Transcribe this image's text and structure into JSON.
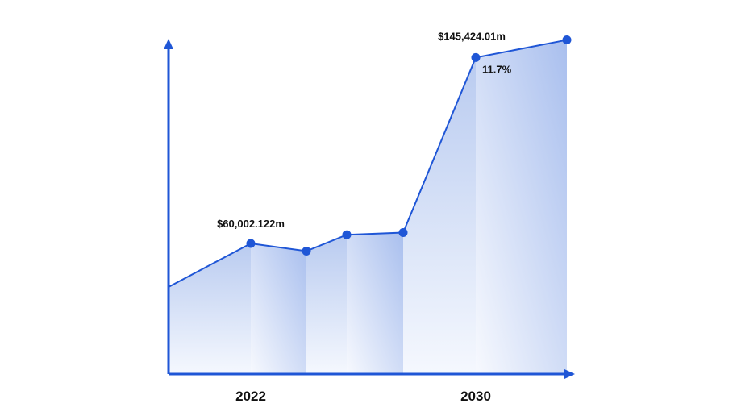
{
  "chart_data": {
    "type": "area",
    "title": "",
    "xlabel": "",
    "ylabel": "",
    "x_ticks": [
      {
        "label": "2022",
        "index": 1
      },
      {
        "label": "2030",
        "index": 5
      }
    ],
    "values": [
      40000,
      60002.122,
      56500,
      64000,
      65000,
      145424.01,
      153500
    ],
    "annotations": [
      {
        "text": "$60,002.122m",
        "point": 1,
        "position": "above"
      },
      {
        "text": "$145,424.01m",
        "point": 5,
        "position": "above-left"
      },
      {
        "text": "11.7%",
        "point": 5,
        "position": "below-right"
      }
    ],
    "ylim": [
      0,
      160000
    ],
    "grid": false,
    "colors": {
      "line": "#1f56d6",
      "axis": "#1f56d6",
      "fill_top": "#b9cbf0",
      "fill_bottom": "#f5f8fe"
    }
  }
}
